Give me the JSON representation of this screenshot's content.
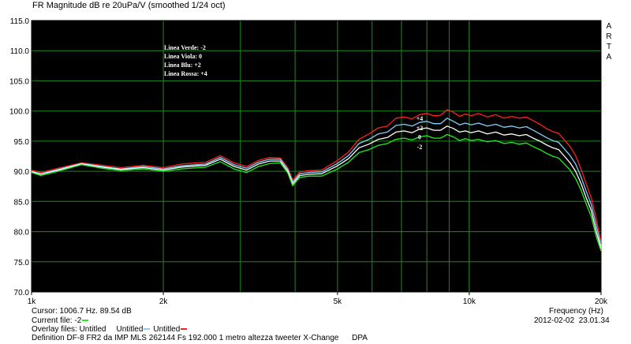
{
  "chart_data": {
    "type": "line",
    "title": "FR Magnitude dB re 20uPa/V (smoothed 1/24 oct)",
    "xlabel": "Frequency (Hz)",
    "x_scale": "log",
    "xlim": [
      1000,
      20000
    ],
    "ylim": [
      70,
      115
    ],
    "x_ticks": [
      {
        "value": 1000,
        "label": "1k"
      },
      {
        "value": 2000,
        "label": "2k"
      },
      {
        "value": 5000,
        "label": "5k"
      },
      {
        "value": 10000,
        "label": "10k"
      },
      {
        "value": 20000,
        "label": "20k"
      }
    ],
    "y_ticks": [
      "70.0",
      "75.0",
      "80.0",
      "85.0",
      "90.0",
      "95.0",
      "100.0",
      "105.0",
      "110.0",
      "115.0"
    ],
    "grid": true,
    "background": "#000000",
    "grid_color": "#1e8a1e",
    "legend_lines": [
      "Linea Verde: -2",
      "Linea Viola: 0",
      "Linea Blu: +2",
      "Linea Rossa: +4"
    ],
    "series": [
      {
        "color": "#ff2020",
        "x": [
          1000,
          1050,
          1150,
          1300,
          1450,
          1600,
          1800,
          2000,
          2200,
          2500,
          2700,
          2900,
          3100,
          3300,
          3500,
          3700,
          3850,
          3950,
          4100,
          4300,
          4600,
          5000,
          5300,
          5600,
          5900,
          6200,
          6500,
          6800,
          7100,
          7400,
          7700,
          8000,
          8300,
          8600,
          8900,
          9200,
          9500,
          9800,
          10100,
          10500,
          11000,
          11500,
          12000,
          12500,
          13000,
          13500,
          14000,
          14500,
          15000,
          15500,
          16000,
          16500,
          17000,
          17500,
          18000,
          18500,
          19000,
          19500,
          20000
        ],
        "y": [
          90.2,
          89.8,
          90.5,
          91.4,
          91.0,
          90.6,
          91.0,
          90.6,
          91.2,
          91.5,
          92.6,
          91.4,
          90.8,
          91.8,
          92.3,
          92.2,
          90.6,
          88.5,
          89.9,
          90.1,
          90.2,
          91.8,
          93.2,
          95.3,
          96.2,
          97.2,
          97.5,
          98.8,
          99.0,
          98.7,
          99.4,
          99.6,
          99.2,
          99.3,
          100.2,
          99.8,
          99.1,
          99.5,
          99.2,
          99.6,
          99.0,
          99.4,
          98.8,
          99.1,
          98.8,
          99.0,
          98.4,
          97.8,
          97.1,
          96.6,
          96.3,
          95.2,
          94.1,
          92.6,
          90.4,
          87.9,
          85.6,
          82.1,
          78.2
        ]
      },
      {
        "color": "#87cefa",
        "x": [
          1000,
          1050,
          1150,
          1300,
          1450,
          1600,
          1800,
          2000,
          2200,
          2500,
          2700,
          2900,
          3100,
          3300,
          3500,
          3700,
          3850,
          3950,
          4100,
          4300,
          4600,
          5000,
          5300,
          5600,
          5900,
          6200,
          6500,
          6800,
          7100,
          7400,
          7700,
          8000,
          8300,
          8600,
          8900,
          9200,
          9500,
          9800,
          10100,
          10500,
          11000,
          11500,
          12000,
          12500,
          13000,
          13500,
          14000,
          14500,
          15000,
          15500,
          16000,
          16500,
          17000,
          17500,
          18000,
          18500,
          19000,
          19500,
          20000
        ],
        "y": [
          90.0,
          89.6,
          90.3,
          91.3,
          90.8,
          90.4,
          90.8,
          90.4,
          90.9,
          91.2,
          92.3,
          91.1,
          90.5,
          91.5,
          92.0,
          92.0,
          90.3,
          88.2,
          89.6,
          89.8,
          89.9,
          91.3,
          92.6,
          94.6,
          95.3,
          96.2,
          96.5,
          97.6,
          97.8,
          97.5,
          98.1,
          98.3,
          97.9,
          97.9,
          98.8,
          98.3,
          97.7,
          98.0,
          97.7,
          98.0,
          97.5,
          97.8,
          97.3,
          97.5,
          97.2,
          97.4,
          96.8,
          96.2,
          95.6,
          95.1,
          94.8,
          93.7,
          92.6,
          91.2,
          89.1,
          86.7,
          84.5,
          81.0,
          77.6
        ]
      },
      {
        "color": "#ffffff",
        "x": [
          1000,
          1050,
          1150,
          1300,
          1450,
          1600,
          1800,
          2000,
          2200,
          2500,
          2700,
          2900,
          3100,
          3300,
          3500,
          3700,
          3850,
          3950,
          4100,
          4300,
          4600,
          5000,
          5300,
          5600,
          5900,
          6200,
          6500,
          6800,
          7100,
          7400,
          7700,
          8000,
          8300,
          8600,
          8900,
          9200,
          9500,
          9800,
          10100,
          10500,
          11000,
          11500,
          12000,
          12500,
          13000,
          13500,
          14000,
          14500,
          15000,
          15500,
          16000,
          16500,
          17000,
          17500,
          18000,
          18500,
          19000,
          19500,
          20000
        ],
        "y": [
          89.9,
          89.5,
          90.2,
          91.2,
          90.7,
          90.3,
          90.6,
          90.2,
          90.7,
          91.0,
          92.0,
          90.8,
          90.2,
          91.2,
          91.7,
          91.7,
          90.0,
          87.9,
          89.3,
          89.5,
          89.6,
          90.9,
          92.1,
          93.9,
          94.5,
          95.3,
          95.6,
          96.5,
          96.7,
          96.4,
          97.0,
          97.2,
          96.8,
          96.8,
          97.5,
          97.1,
          96.5,
          96.7,
          96.4,
          96.7,
          96.2,
          96.5,
          96.0,
          96.2,
          95.9,
          96.1,
          95.5,
          95.0,
          94.4,
          93.9,
          93.6,
          92.5,
          91.4,
          90.0,
          88.0,
          85.6,
          83.5,
          80.0,
          77.2
        ]
      },
      {
        "color": "#22ee22",
        "x": [
          1000,
          1050,
          1150,
          1300,
          1450,
          1600,
          1800,
          2000,
          2200,
          2500,
          2700,
          2900,
          3100,
          3300,
          3500,
          3700,
          3850,
          3950,
          4100,
          4300,
          4600,
          5000,
          5300,
          5600,
          5900,
          6200,
          6500,
          6800,
          7100,
          7400,
          7700,
          8000,
          8300,
          8600,
          8900,
          9200,
          9500,
          9800,
          10100,
          10500,
          11000,
          11500,
          12000,
          12500,
          13000,
          13500,
          14000,
          14500,
          15000,
          15500,
          16000,
          16500,
          17000,
          17500,
          18000,
          18500,
          19000,
          19500,
          20000
        ],
        "y": [
          89.8,
          89.3,
          90.0,
          91.1,
          90.5,
          90.1,
          90.4,
          90.0,
          90.4,
          90.7,
          91.6,
          90.4,
          89.8,
          90.8,
          91.3,
          91.4,
          89.7,
          87.6,
          89.0,
          89.2,
          89.2,
          90.4,
          91.5,
          93.1,
          93.6,
          94.3,
          94.6,
          95.3,
          95.5,
          95.2,
          95.7,
          95.9,
          95.5,
          95.5,
          96.1,
          95.7,
          95.1,
          95.4,
          95.1,
          95.3,
          94.9,
          95.1,
          94.6,
          94.8,
          94.5,
          94.7,
          94.1,
          93.6,
          93.0,
          92.5,
          92.2,
          91.2,
          90.2,
          88.8,
          86.9,
          84.6,
          82.5,
          79.2,
          76.8
        ]
      }
    ],
    "annotations": [
      {
        "text": "+4",
        "x": 7700,
        "y": 98.4
      },
      {
        "text": "+2",
        "x": 7700,
        "y": 96.8
      },
      {
        "text": "0",
        "x": 7700,
        "y": 95.3
      },
      {
        "text": "-2",
        "x": 7700,
        "y": 93.7
      }
    ]
  },
  "arta_label": [
    "A",
    "R",
    "T",
    "A"
  ],
  "footer": {
    "cursor": "Cursor: 1006.7 Hz. 89.54 dB",
    "current_file_label": "Current file: -2",
    "current_file_color": "#22ee22",
    "overlay_label": "Overlay files:",
    "overlay_files": [
      {
        "name": "Untitled",
        "color": "#ffffff"
      },
      {
        "name": "Untitled",
        "color": "#87cefa"
      },
      {
        "name": "Untitled",
        "color": "#ff2020"
      }
    ],
    "definition": "Definition DF-8 FR2 da IMP MLS 262144 Fs 192.000 1 metro altezza tweeter X-Change      DPA",
    "date": "2012-02-02",
    "time": "23.01.34"
  }
}
